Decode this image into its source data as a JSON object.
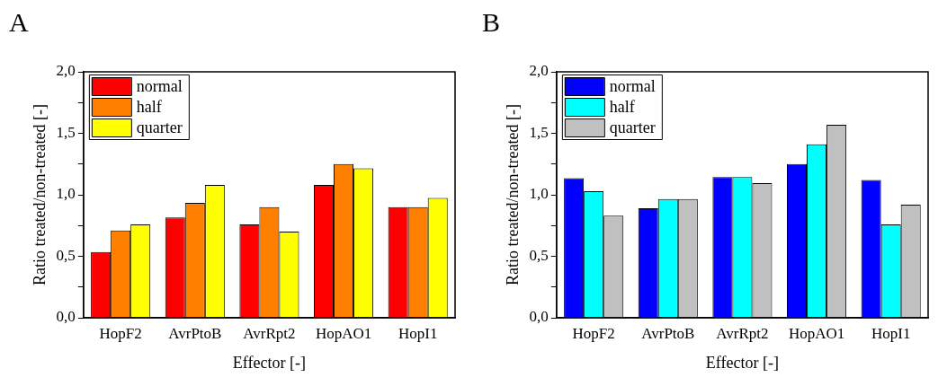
{
  "chart_data": [
    {
      "type": "bar",
      "title": "A",
      "xlabel": "Effector [-]",
      "ylabel": "Ratio treated/non-treated [-]",
      "categories": [
        "HopF2",
        "AvrPtoB",
        "AvrRpt2",
        "HopAO1",
        "HopI1"
      ],
      "series": [
        {
          "name": "normal",
          "color": "#ff0000",
          "values": [
            0.535,
            0.815,
            0.76,
            1.08,
            0.9
          ]
        },
        {
          "name": "half",
          "color": "#ff8000",
          "values": [
            0.71,
            0.935,
            0.9,
            1.25,
            0.9
          ]
        },
        {
          "name": "quarter",
          "color": "#ffff00",
          "values": [
            0.76,
            1.08,
            0.7,
            1.215,
            0.975
          ]
        }
      ],
      "ylim": [
        0,
        2
      ],
      "yticks": [
        {
          "value": 0,
          "label": "0,0"
        },
        {
          "value": 0.25,
          "label": null
        },
        {
          "value": 0.5,
          "label": "0,5"
        },
        {
          "value": 0.75,
          "label": null
        },
        {
          "value": 1,
          "label": "1,0"
        },
        {
          "value": 1.25,
          "label": null
        },
        {
          "value": 1.5,
          "label": "1,5"
        },
        {
          "value": 1.75,
          "label": null
        },
        {
          "value": 2,
          "label": "2,0"
        }
      ],
      "grid": false,
      "legend": "top left"
    },
    {
      "type": "bar",
      "title": "B",
      "xlabel": "Effector [-]",
      "ylabel": "Ratio treated/non-treated [-]",
      "categories": [
        "HopF2",
        "AvrPtoB",
        "AvrRpt2",
        "HopAO1",
        "HopI1"
      ],
      "series": [
        {
          "name": "normal",
          "color": "#0000ff",
          "values": [
            1.135,
            0.89,
            1.145,
            1.25,
            1.12
          ]
        },
        {
          "name": "half",
          "color": "#00ffff",
          "values": [
            1.03,
            0.965,
            1.145,
            1.41,
            0.76
          ]
        },
        {
          "name": "quarter",
          "color": "#c0c0c0",
          "values": [
            0.83,
            0.965,
            1.095,
            1.57,
            0.92
          ]
        }
      ],
      "ylim": [
        0,
        2
      ],
      "yticks": [
        {
          "value": 0,
          "label": "0,0"
        },
        {
          "value": 0.25,
          "label": null
        },
        {
          "value": 0.5,
          "label": "0,5"
        },
        {
          "value": 0.75,
          "label": null
        },
        {
          "value": 1,
          "label": "1,0"
        },
        {
          "value": 1.25,
          "label": null
        },
        {
          "value": 1.5,
          "label": "1,5"
        },
        {
          "value": 1.75,
          "label": null
        },
        {
          "value": 2,
          "label": "2,0"
        }
      ],
      "grid": false,
      "legend": "top left"
    }
  ]
}
